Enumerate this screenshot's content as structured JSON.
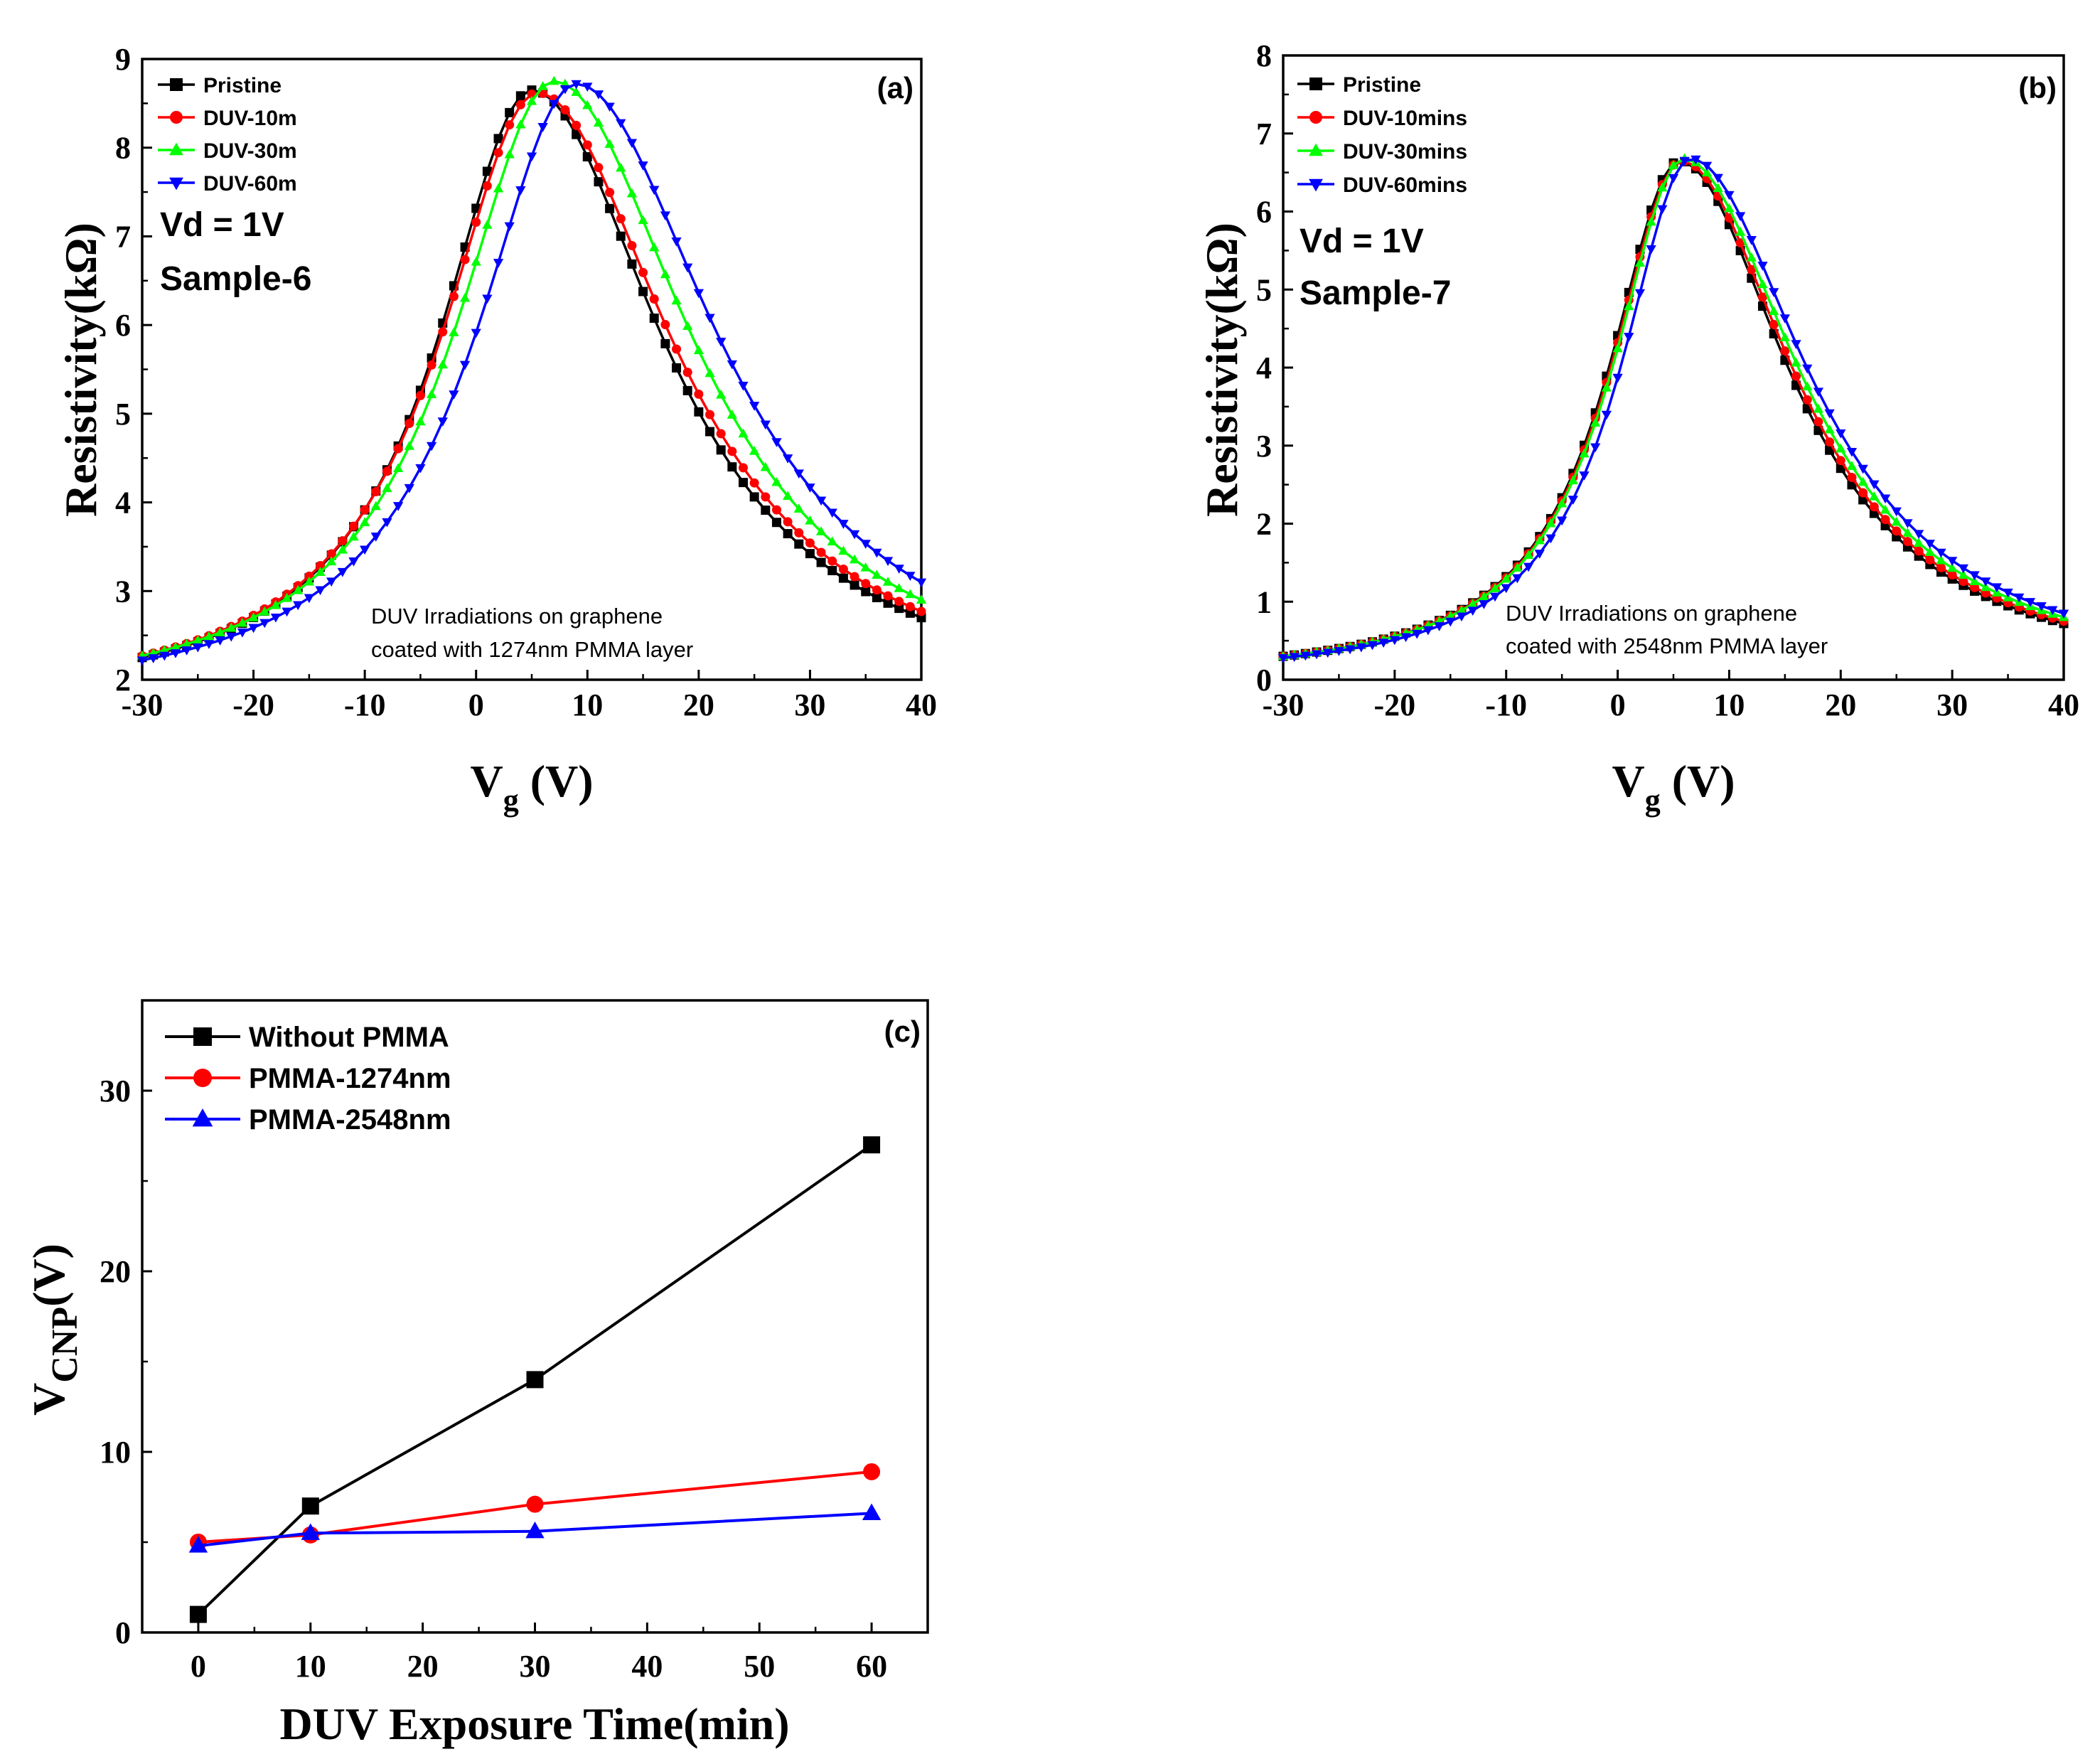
{
  "chart_data": [
    {
      "id": "a",
      "type": "line",
      "panel_label": "(a)",
      "xlabel_main": "V",
      "xlabel_sub": "g",
      "xlabel_unit": " (V)",
      "ylabel": "Resistivity(kΩ)",
      "xlim": [
        -30,
        40
      ],
      "ylim": [
        2,
        9
      ],
      "xticks": [
        "-30",
        "-20",
        "-10",
        "0",
        "10",
        "20",
        "30",
        "40"
      ],
      "yticks": [
        "2",
        "3",
        "4",
        "5",
        "6",
        "7",
        "8",
        "9"
      ],
      "annotation_lines": [
        "Vd = 1V",
        "Sample-6"
      ],
      "note_lines": [
        "DUV Irradiations on graphene",
        "coated with 1274nm PMMA layer"
      ],
      "legend_position": "top-left",
      "x_step": 1,
      "series": [
        {
          "name": "Pristine",
          "color": "#000000",
          "marker": "square",
          "peak_x": 5.0,
          "peak_y": 8.65,
          "base_y": 1.7,
          "half_width_left": 6.5,
          "half_width_right": 6.5,
          "y_at_xmin": 2.25,
          "y_at_xmax": 2.7
        },
        {
          "name": "DUV-10m",
          "color": "#ff0000",
          "marker": "circle",
          "peak_x": 5.5,
          "peak_y": 8.62,
          "base_y": 1.7,
          "half_width_left": 6.5,
          "half_width_right": 6.8,
          "y_at_xmin": 2.27,
          "y_at_xmax": 2.77
        },
        {
          "name": "DUV-30m",
          "color": "#00ff00",
          "marker": "triangle-up",
          "peak_x": 7.0,
          "peak_y": 8.75,
          "base_y": 1.7,
          "half_width_left": 6.5,
          "half_width_right": 7.5,
          "y_at_xmin": 2.27,
          "y_at_xmax": 2.9
        },
        {
          "name": "DUV-60m",
          "color": "#0000ff",
          "marker": "triangle-down",
          "peak_x": 9.0,
          "peak_y": 8.72,
          "base_y": 1.7,
          "half_width_left": 6.5,
          "half_width_right": 8.5,
          "y_at_xmin": 2.22,
          "y_at_xmax": 3.1
        }
      ]
    },
    {
      "id": "b",
      "type": "line",
      "panel_label": "(b)",
      "xlabel_main": "V",
      "xlabel_sub": "g",
      "xlabel_unit": " (V)",
      "ylabel": "Resistivity(kΩ)",
      "xlim": [
        -30,
        40
      ],
      "ylim": [
        0,
        8
      ],
      "xticks": [
        "-30",
        "-20",
        "-10",
        "0",
        "10",
        "20",
        "30",
        "40"
      ],
      "yticks": [
        "0",
        "1",
        "2",
        "3",
        "4",
        "5",
        "6",
        "7",
        "8"
      ],
      "annotation_lines": [
        "Vd = 1V",
        "Sample-7"
      ],
      "note_lines": [
        "DUV Irradiations on graphene",
        "coated with 2548nm PMMA layer"
      ],
      "legend_position": "top-left",
      "x_step": 1,
      "series": [
        {
          "name": "Pristine",
          "color": "#000000",
          "marker": "square",
          "peak_x": 5.5,
          "peak_y": 6.65,
          "base_y": 0,
          "half_width_left": 7.0,
          "half_width_right": 7.2,
          "y_at_xmin": 0.3,
          "y_at_xmax": 0.72
        },
        {
          "name": "DUV-10mins",
          "color": "#ff0000",
          "marker": "circle",
          "peak_x": 5.7,
          "peak_y": 6.65,
          "base_y": 0,
          "half_width_left": 7.0,
          "half_width_right": 7.3,
          "y_at_xmin": 0.3,
          "y_at_xmax": 0.75
        },
        {
          "name": "DUV-30mins",
          "color": "#00ff00",
          "marker": "triangle-up",
          "peak_x": 5.9,
          "peak_y": 6.68,
          "base_y": 0,
          "half_width_left": 7.0,
          "half_width_right": 7.5,
          "y_at_xmin": 0.3,
          "y_at_xmax": 0.8
        },
        {
          "name": "DUV-60mins",
          "color": "#0000ff",
          "marker": "triangle-down",
          "peak_x": 6.5,
          "peak_y": 6.68,
          "base_y": 0,
          "half_width_left": 7.0,
          "half_width_right": 7.8,
          "y_at_xmin": 0.28,
          "y_at_xmax": 0.85
        }
      ]
    },
    {
      "id": "c",
      "type": "line",
      "panel_label": "(c)",
      "xlabel": "DUV Exposure Time(min)",
      "ylabel_main": "V",
      "ylabel_sub": "CNP",
      "ylabel_unit": "(V)",
      "xlim": [
        -5,
        65
      ],
      "ylim": [
        0,
        35
      ],
      "xticks": [
        "0",
        "10",
        "20",
        "30",
        "40",
        "50",
        "60"
      ],
      "yticks": [
        "0",
        "10",
        "20",
        "30"
      ],
      "legend_position": "top-left",
      "series": [
        {
          "name": "Without PMMA",
          "color": "#000000",
          "marker": "square",
          "x": [
            0,
            10,
            30,
            60
          ],
          "y": [
            1,
            7,
            14,
            27
          ]
        },
        {
          "name": "PMMA-1274nm",
          "color": "#ff0000",
          "marker": "circle",
          "x": [
            0,
            10,
            30,
            60
          ],
          "y": [
            5,
            5.4,
            7.1,
            8.9
          ]
        },
        {
          "name": "PMMA-2548nm",
          "color": "#0000ff",
          "marker": "triangle-up",
          "x": [
            0,
            10,
            30,
            60
          ],
          "y": [
            4.8,
            5.5,
            5.6,
            6.6
          ]
        }
      ]
    }
  ]
}
